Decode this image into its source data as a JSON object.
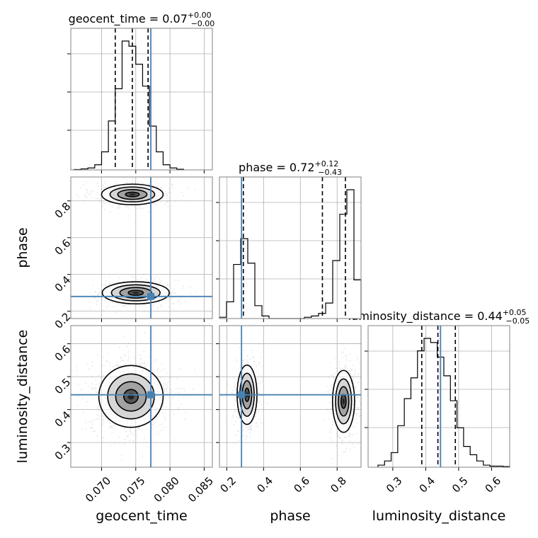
{
  "chart_data": {
    "type": "corner",
    "grid": true,
    "truth_color": "#4682b4",
    "parameters": [
      {
        "key": "geocent_time",
        "axis_label": "geocent_time",
        "title": {
          "prefix": "geocent_time = ",
          "value": "0.07",
          "upper": "+0.00",
          "lower": "−0.00"
        },
        "range": [
          0.0655,
          0.0862
        ],
        "ticks": [
          0.07,
          0.075,
          0.08,
          0.085
        ],
        "tick_labels": [
          "0.070",
          "0.075",
          "0.080",
          "0.085"
        ],
        "truth": 0.0772,
        "quantiles": [
          0.072,
          0.0745,
          0.0768
        ],
        "histogram": {
          "bin_start": 0.066,
          "bin_width": 0.001,
          "counts": [
            0.3,
            0.8,
            1.5,
            4,
            14,
            38,
            63,
            100,
            96,
            82,
            65,
            34,
            14,
            4,
            1.5,
            0.5
          ]
        }
      },
      {
        "key": "phase",
        "axis_label": "phase",
        "title": {
          "prefix": "phase = ",
          "value": "0.72",
          "upper": "+0.12",
          "lower": "−0.43"
        },
        "range": [
          0.16,
          0.93
        ],
        "ticks": [
          0.2,
          0.4,
          0.6,
          0.8
        ],
        "tick_labels": [
          "0.2",
          "0.4",
          "0.6",
          "0.8"
        ],
        "truth": 0.28,
        "quantiles": [
          0.29,
          0.72,
          0.845
        ],
        "histogram": {
          "bin_start": 0.16,
          "bin_width": 0.0385,
          "counts": [
            1,
            13,
            42,
            62,
            43,
            10,
            2,
            0,
            0,
            0,
            0,
            0,
            1,
            2,
            4,
            12,
            45,
            81,
            100,
            30
          ]
        }
      },
      {
        "key": "luminosity_distance",
        "axis_label": "luminosity_distance",
        "title": {
          "prefix": "luminosity_distance = ",
          "value": "0.44",
          "upper": "+0.05",
          "lower": "−0.05"
        },
        "range": [
          0.225,
          0.655
        ],
        "ticks": [
          0.3,
          0.4,
          0.5,
          0.6
        ],
        "tick_labels": [
          "0.3",
          "0.4",
          "0.5",
          "0.6"
        ],
        "truth": 0.445,
        "quantiles": [
          0.388,
          0.437,
          0.49
        ],
        "histogram": {
          "bin_start": 0.255,
          "bin_width": 0.02,
          "counts": [
            1,
            3,
            7,
            20,
            33,
            43,
            56,
            62,
            60,
            53,
            44,
            32,
            19,
            10,
            6,
            3,
            1,
            0.5,
            0.5,
            0.3
          ]
        }
      }
    ],
    "pair_modes": {
      "1_0": [
        {
          "x": 0.0745,
          "y": 0.835,
          "sx": 0.00225,
          "sy": 0.028,
          "w": 0.55
        },
        {
          "x": 0.075,
          "y": 0.3,
          "sx": 0.00245,
          "sy": 0.03,
          "w": 0.45
        }
      ],
      "2_0": [
        {
          "x": 0.0743,
          "y": 0.44,
          "sx": 0.00235,
          "sy": 0.047,
          "w": 1.0
        }
      ],
      "2_1": [
        {
          "x": 0.31,
          "y": 0.445,
          "sx": 0.027,
          "sy": 0.045,
          "w": 0.45
        },
        {
          "x": 0.835,
          "y": 0.425,
          "sx": 0.03,
          "sy": 0.047,
          "w": 0.55
        }
      ]
    }
  }
}
